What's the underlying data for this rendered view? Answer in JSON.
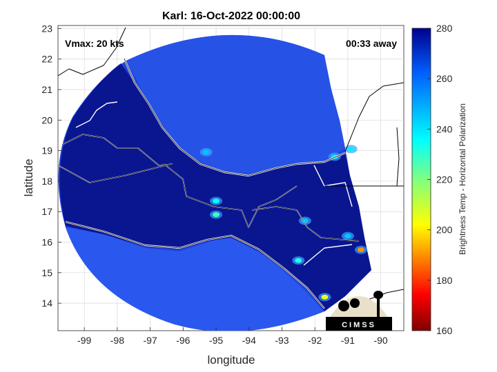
{
  "chart_data": {
    "type": "heatmap",
    "title": "Karl: 16-Oct-2022 00:00:00",
    "xlabel": "longitude",
    "ylabel": "latitude",
    "xlim": [
      -99.8,
      -89.3
    ],
    "ylim": [
      13.1,
      23.1
    ],
    "xticks": [
      -99,
      -98,
      -97,
      -96,
      -95,
      -94,
      -93,
      -92,
      -91,
      -90
    ],
    "yticks": [
      14,
      15,
      16,
      17,
      18,
      19,
      20,
      21,
      22,
      23
    ],
    "grid": true,
    "annotation_left": "Vmax: 20 kts",
    "annotation_right": "00:33 away",
    "colorbar": {
      "label": "Brightness Temp - Horizontal Polarization",
      "range": [
        160,
        280
      ],
      "ticks": [
        160,
        180,
        200,
        220,
        240,
        260,
        280
      ],
      "colormap": "jet"
    },
    "logo_text": "CIMSS",
    "hotspots": [
      {
        "lon": -95.0,
        "lat": 16.9,
        "value": 228
      },
      {
        "lon": -95.0,
        "lat": 17.35,
        "value": 236
      },
      {
        "lon": -95.3,
        "lat": 18.95,
        "value": 245
      },
      {
        "lon": -91.7,
        "lat": 14.2,
        "value": 205
      },
      {
        "lon": -92.5,
        "lat": 15.4,
        "value": 232
      },
      {
        "lon": -90.6,
        "lat": 15.75,
        "value": 190
      },
      {
        "lon": -91.4,
        "lat": 18.8,
        "value": 240
      },
      {
        "lon": -90.9,
        "lat": 19.05,
        "value": 238
      },
      {
        "lon": -92.3,
        "lat": 16.7,
        "value": 245
      },
      {
        "lon": -91.0,
        "lat": 16.2,
        "value": 245
      }
    ]
  },
  "colors": {
    "background_disc": "#1c3fd8",
    "land_dark": "#0a1690",
    "sea_light": "#2e5cf0"
  }
}
